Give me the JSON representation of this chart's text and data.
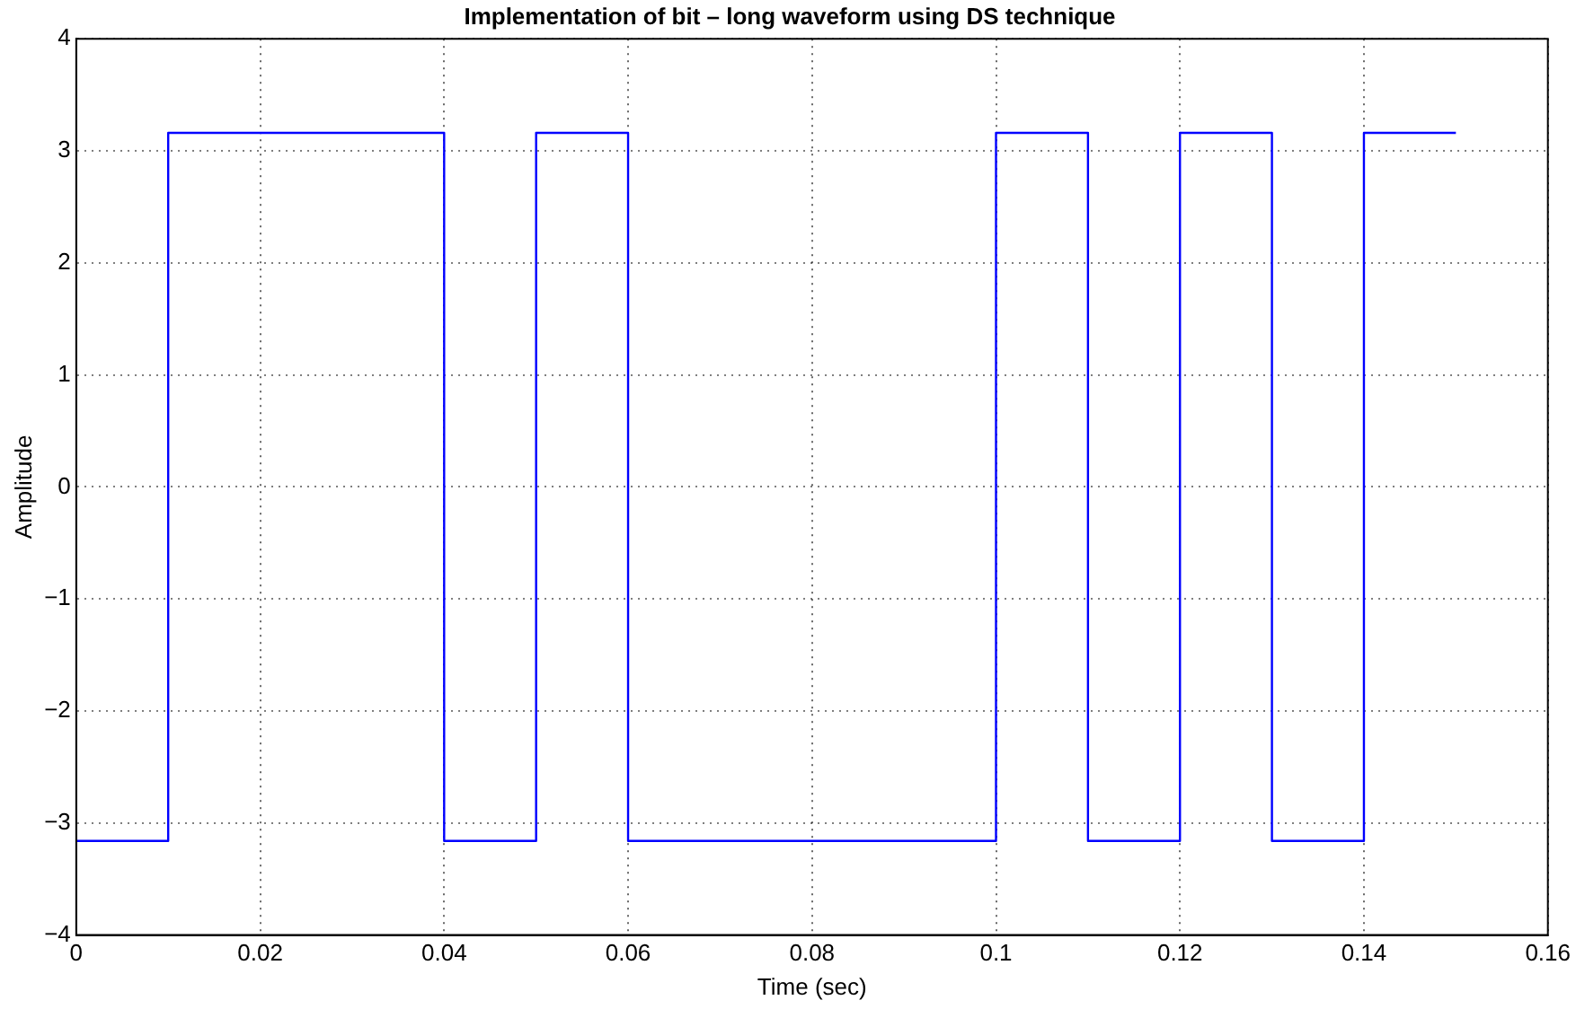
{
  "chart_data": {
    "type": "step",
    "title": "Implementation of bit – long waveform using DS technique",
    "xlabel": "Time (sec)",
    "ylabel": "Amplitude",
    "x": [
      0,
      0.01,
      0.04,
      0.05,
      0.06,
      0.1,
      0.11,
      0.12,
      0.13,
      0.14,
      0.15
    ],
    "series": [
      {
        "color": "#0000ff",
        "values": [
          -3.16,
          3.16,
          -3.16,
          3.16,
          -3.16,
          3.16,
          -3.16,
          3.16,
          -3.16,
          3.16,
          3.16
        ]
      }
    ],
    "xlim": [
      0,
      0.16
    ],
    "xticks": [
      0,
      0.02,
      0.04,
      0.06,
      0.08,
      0.1,
      0.12,
      0.14,
      0.16
    ],
    "ylim": [
      -4,
      4
    ],
    "yticks": [
      -4,
      -3,
      -2,
      -1,
      0,
      1,
      2,
      3,
      4
    ],
    "grid": true,
    "legend": false,
    "marker": "none",
    "line_style": "solid"
  }
}
